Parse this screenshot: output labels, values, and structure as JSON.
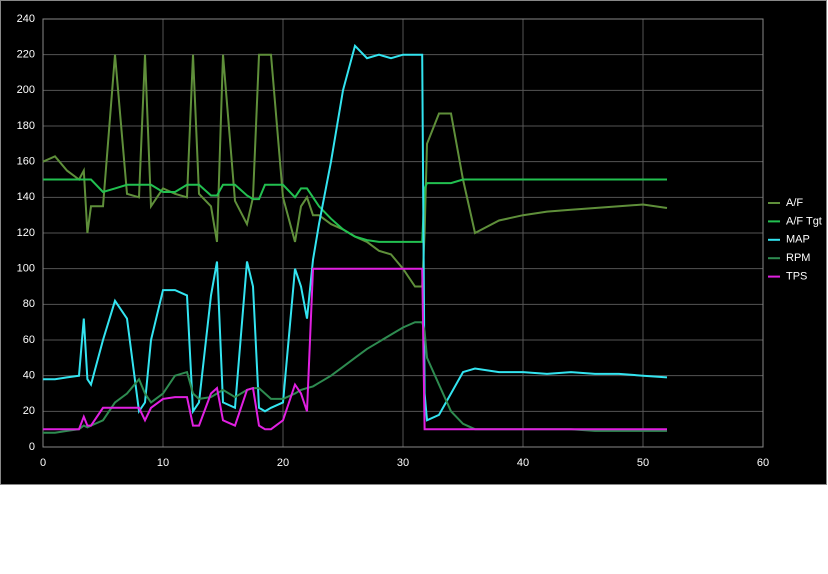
{
  "chart_data": {
    "type": "line",
    "x": [
      0,
      1,
      2,
      3,
      3.4,
      3.7,
      4,
      5,
      6,
      7,
      8,
      8.5,
      9,
      10,
      11,
      12,
      12.5,
      13,
      14,
      14.5,
      15,
      16,
      17,
      17.5,
      18,
      18.5,
      19,
      20,
      21,
      21.5,
      22,
      22.5,
      23,
      24,
      25,
      26,
      27,
      28,
      29,
      30,
      31,
      31.6,
      31.8,
      32,
      33,
      34,
      35,
      36,
      38,
      40,
      42,
      44,
      46,
      48,
      50,
      52
    ],
    "series": [
      {
        "name": "A/F",
        "color": "#5f8f3a",
        "values": [
          160,
          163,
          155,
          150,
          155,
          120,
          135,
          135,
          220,
          142,
          140,
          220,
          135,
          145,
          142,
          140,
          220,
          142,
          135,
          115,
          220,
          138,
          125,
          140,
          220,
          220,
          220,
          140,
          115,
          135,
          140,
          130,
          130,
          125,
          122,
          118,
          115,
          110,
          108,
          100,
          90,
          90,
          120,
          170,
          187,
          187,
          150,
          120,
          127,
          130,
          132,
          133,
          134,
          135,
          136,
          134
        ]
      },
      {
        "name": "A/F Tgt",
        "color": "#22c050",
        "values": [
          150,
          150,
          150,
          150,
          150,
          150,
          150,
          143,
          145,
          147,
          147,
          147,
          147,
          143,
          143,
          147,
          147,
          147,
          141,
          141,
          147,
          147,
          141,
          139,
          139,
          147,
          147,
          147,
          140,
          145,
          145,
          140,
          135,
          128,
          122,
          118,
          116,
          115,
          115,
          115,
          115,
          115,
          145,
          148,
          148,
          148,
          150,
          150,
          150,
          150,
          150,
          150,
          150,
          150,
          150,
          150
        ]
      },
      {
        "name": "MAP",
        "color": "#33e4f0",
        "values": [
          38,
          38,
          39,
          40,
          72,
          38,
          35,
          60,
          82,
          72,
          20,
          25,
          60,
          88,
          88,
          85,
          20,
          25,
          85,
          104,
          25,
          22,
          104,
          90,
          22,
          20,
          22,
          25,
          100,
          90,
          72,
          105,
          125,
          160,
          200,
          225,
          218,
          220,
          218,
          220,
          220,
          220,
          30,
          15,
          18,
          30,
          42,
          44,
          42,
          42,
          41,
          42,
          41,
          41,
          40,
          39
        ]
      },
      {
        "name": "RPM",
        "color": "#2e8b50",
        "values": [
          8,
          8,
          9,
          10,
          12,
          11,
          12,
          15,
          25,
          30,
          38,
          30,
          25,
          30,
          40,
          42,
          30,
          27,
          28,
          30,
          32,
          28,
          32,
          33,
          33,
          30,
          27,
          27,
          30,
          32,
          33,
          34,
          36,
          40,
          45,
          50,
          55,
          59,
          63,
          67,
          70,
          70,
          65,
          50,
          35,
          20,
          13,
          10,
          10,
          10,
          10,
          10,
          9,
          9,
          9,
          9
        ]
      },
      {
        "name": "TPS",
        "color": "#e020e0",
        "values": [
          10,
          10,
          10,
          10,
          17,
          12,
          12,
          22,
          22,
          22,
          22,
          15,
          22,
          27,
          28,
          28,
          12,
          12,
          30,
          33,
          15,
          12,
          32,
          33,
          12,
          10,
          10,
          15,
          35,
          30,
          20,
          100,
          100,
          100,
          100,
          100,
          100,
          100,
          100,
          100,
          100,
          100,
          10,
          10,
          10,
          10,
          10,
          10,
          10,
          10,
          10,
          10,
          10,
          10,
          10,
          10
        ]
      }
    ],
    "xlim": [
      0,
      60
    ],
    "xticks": [
      0,
      10,
      20,
      30,
      40,
      50,
      60
    ],
    "ylim": [
      0,
      240
    ],
    "yticks": [
      0,
      20,
      40,
      60,
      80,
      100,
      120,
      140,
      160,
      180,
      200,
      220,
      240
    ],
    "grid": true,
    "legend": "right"
  }
}
